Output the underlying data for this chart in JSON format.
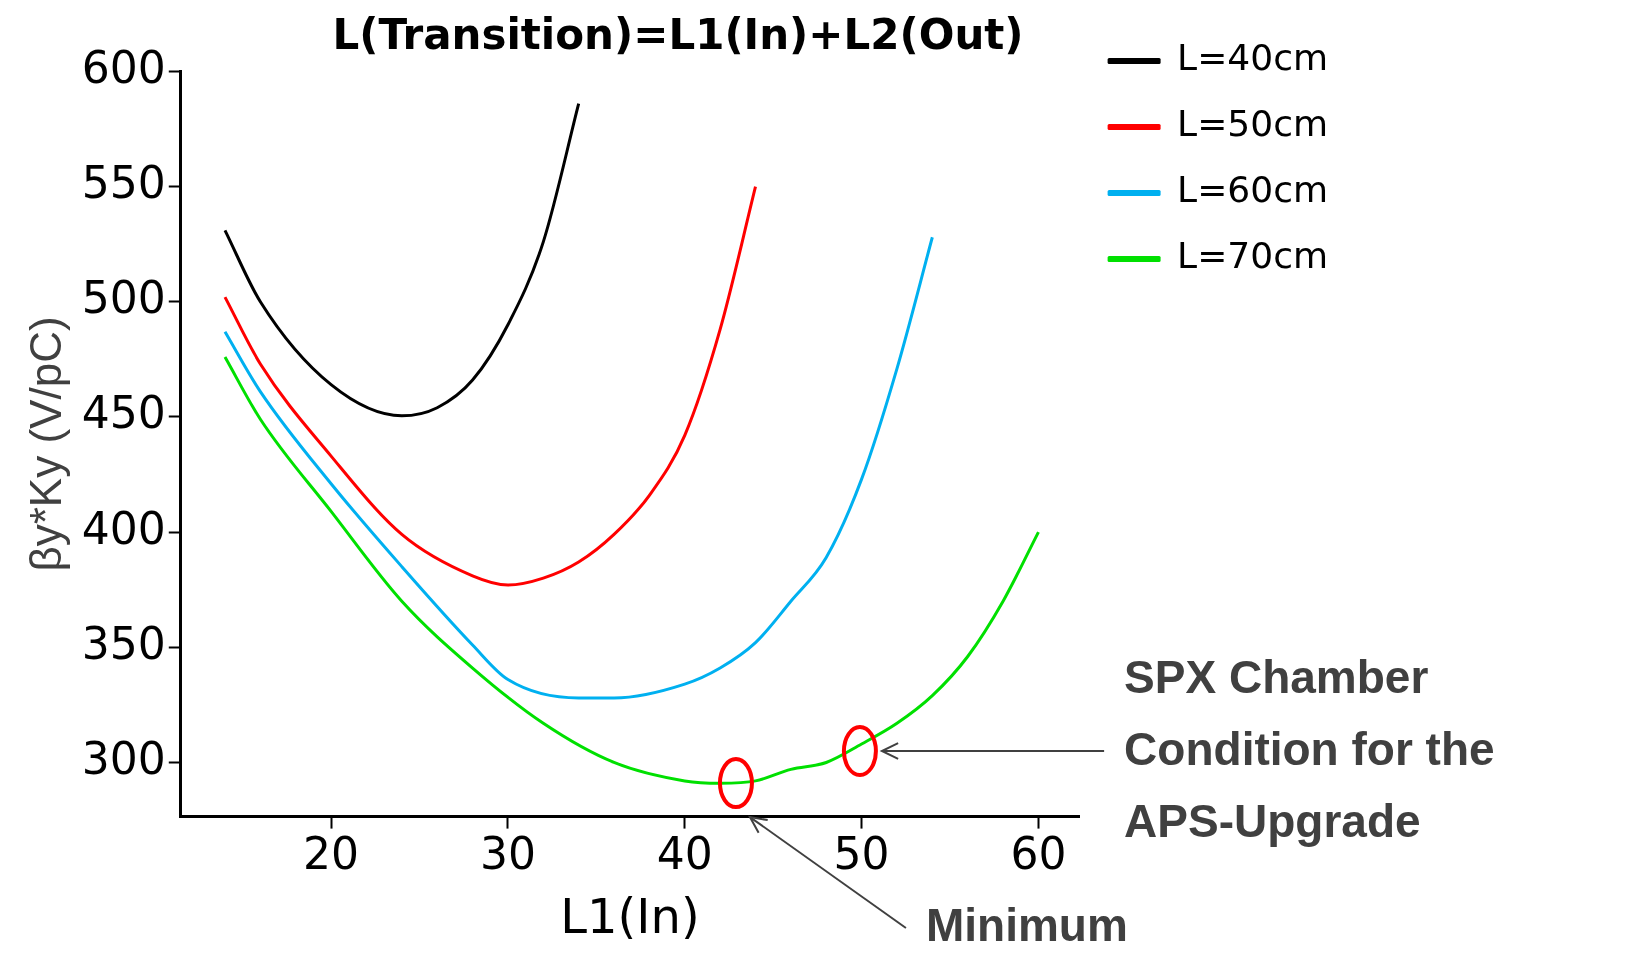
{
  "chart_data": {
    "type": "line",
    "title": "L(Transition)=L1(In)+L2(Out)",
    "xlabel": "L1(In)",
    "ylabel": "βy*Ky (V/pC)",
    "xlim": [
      11.5,
      62.3
    ],
    "xticks": [
      20,
      30,
      40,
      50,
      60
    ],
    "ylim": [
      276.5,
      600
    ],
    "yticks": [
      300,
      350,
      400,
      450,
      500,
      550,
      600
    ],
    "grid": false,
    "legend": "right",
    "marker": "none",
    "line_style": "solid",
    "series": [
      {
        "name": "L=40cm",
        "color": "#000000",
        "x": [
          14,
          16,
          20,
          24,
          26,
          28,
          30,
          32,
          34
        ],
        "values": [
          531,
          500,
          464,
          450.5,
          454,
          466,
          490,
          526,
          586
        ]
      },
      {
        "name": "L=50cm",
        "color": "#ff0000",
        "x": [
          14,
          16,
          20,
          24,
          28,
          30,
          32,
          34,
          36,
          38,
          40,
          42,
          44
        ],
        "values": [
          502,
          473,
          433,
          399,
          381,
          377,
          380,
          387,
          399,
          416,
          442,
          488,
          550
        ]
      },
      {
        "name": "L=60cm",
        "color": "#00b0f0",
        "x": [
          14,
          16,
          20,
          24,
          28,
          30,
          34,
          36,
          40,
          42,
          44,
          46,
          48,
          50,
          52,
          54
        ],
        "values": [
          487,
          461,
          421,
          385,
          351,
          336,
          328,
          328,
          334,
          341,
          352,
          370,
          389,
          423,
          471,
          528
        ]
      },
      {
        "name": "L=70cm",
        "color": "#00e000",
        "x": [
          14,
          16,
          20,
          24,
          28,
          32,
          36,
          40,
          42,
          44,
          46,
          48,
          50,
          52,
          54,
          56,
          58,
          60
        ],
        "values": [
          476,
          449,
          409,
          370,
          341,
          317,
          300,
          292,
          291,
          292,
          297,
          300,
          308,
          317,
          329,
          346,
          370,
          400
        ]
      }
    ],
    "annotations": [
      "SPX Chamber Condition for the APS-Upgrade",
      "Minimum"
    ]
  }
}
